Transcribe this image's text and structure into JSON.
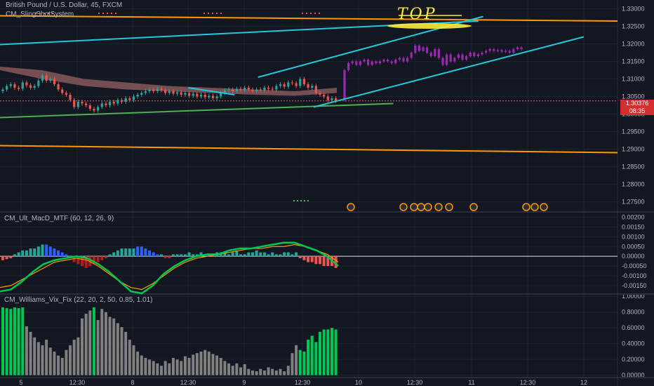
{
  "header": {
    "symbol_line": "British Pound / U.S. Dollar, 45, FXCM",
    "indicator": "CM_SlingShotSystem"
  },
  "annotation": {
    "text": "TOP",
    "color": "#ffeb3b"
  },
  "last_price": {
    "value": "1.30376",
    "countdown": "08:35",
    "color": "#d32f2f"
  },
  "colors": {
    "background": "#131722",
    "grid": "#1e222d",
    "up": "#26a69a",
    "down": "#ef5350",
    "projection": "#9c27b0",
    "ema_band": "#8d5c5c",
    "cyan": "#26c6da",
    "orange": "#ff9800",
    "green_line": "#4caf50",
    "macd_fast": "#00c853",
    "macd_signal": "#ff9800",
    "vix_green": "#00c853",
    "vix_gray": "#808080"
  },
  "chart_data": [
    {
      "type": "candlestick",
      "title": "British Pound / U.S. Dollar, 45, FXCM",
      "x_ticks": [
        "5",
        "12:30",
        "8",
        "12:30",
        "9",
        "12:30",
        "10",
        "12:30",
        "11",
        "12:30",
        "12"
      ],
      "y_ticks": [
        "1.33000",
        "1.32500",
        "1.32000",
        "1.31500",
        "1.31000",
        "1.30500",
        "1.30000",
        "1.29500",
        "1.29000",
        "1.28500",
        "1.28000",
        "1.27500"
      ],
      "ylim": [
        1.2725,
        1.3325
      ],
      "close": [
        1.307,
        1.308,
        1.3085,
        1.3075,
        1.3072,
        1.309,
        1.3082,
        1.3075,
        1.308,
        1.3095,
        1.311,
        1.3095,
        1.31,
        1.3085,
        1.307,
        1.306,
        1.3055,
        1.304,
        1.302,
        1.3035,
        1.303,
        1.3025,
        1.3015,
        1.301,
        1.302,
        1.303,
        1.3025,
        1.3035,
        1.303,
        1.304,
        1.3035,
        1.3045,
        1.304,
        1.305,
        1.3055,
        1.306,
        1.3065,
        1.307,
        1.3065,
        1.3072,
        1.3068,
        1.306,
        1.3065,
        1.3058,
        1.3062,
        1.3055,
        1.306,
        1.3052,
        1.3058,
        1.305,
        1.3055,
        1.3048,
        1.3052,
        1.3045,
        1.305,
        1.306,
        1.3068,
        1.307,
        1.3065,
        1.3072,
        1.3068,
        1.3075,
        1.307,
        1.3065,
        1.307,
        1.3068,
        1.3075,
        1.3072,
        1.307,
        1.308,
        1.3085,
        1.3078,
        1.309,
        1.3088,
        1.308,
        1.31,
        1.3085,
        1.3075,
        1.308,
        1.306,
        1.3055,
        1.305,
        1.304,
        1.3045,
        1.3038
      ],
      "projection_close": [
        1.3125,
        1.3145,
        1.315,
        1.314,
        1.315,
        1.3155,
        1.314,
        1.315,
        1.3145,
        1.315,
        1.3155,
        1.315,
        1.3145,
        1.3155,
        1.316,
        1.315,
        1.316,
        1.3175,
        1.3195,
        1.318,
        1.319,
        1.3175,
        1.3165,
        1.3185,
        1.316,
        1.314,
        1.317,
        1.315,
        1.316,
        1.317,
        1.3155,
        1.3165,
        1.3175,
        1.3165,
        1.317,
        1.3175,
        1.318,
        1.3185,
        1.318,
        1.3182,
        1.3178,
        1.318,
        1.3175,
        1.3185,
        1.319,
        1.3185
      ],
      "ema_band": [
        [
          1.3135,
          1.3125
        ],
        [
          1.3125,
          1.31
        ],
        [
          1.31,
          1.308
        ],
        [
          1.309,
          1.307
        ],
        [
          1.308,
          1.3065
        ],
        [
          1.3075,
          1.306
        ],
        [
          1.307,
          1.3055
        ],
        [
          1.3065,
          1.3052
        ],
        [
          1.3075,
          1.306
        ]
      ],
      "lines": [
        {
          "color": "cyan",
          "from": [
            "start",
            1.3198
          ],
          "to": [
            "11 01:30",
            1.3265
          ]
        },
        {
          "color": "orange",
          "from": [
            "start",
            1.328
          ],
          "to": [
            "end",
            1.3265
          ]
        },
        {
          "color": "orange",
          "from": [
            "start",
            1.291
          ],
          "to": [
            "end",
            1.289
          ]
        },
        {
          "color": "green_line",
          "from": [
            "start",
            1.299
          ],
          "to": [
            "10 07:30",
            1.303
          ]
        },
        {
          "color": "cyan",
          "from": [
            "9 03:00",
            1.3105
          ],
          "to": [
            "11 02:30",
            1.3278
          ]
        },
        {
          "color": "cyan",
          "from": [
            "9 15:00",
            1.302
          ],
          "to": [
            "12 00:00",
            1.322
          ]
        },
        {
          "color": "cyan",
          "from": [
            "8 12:00",
            1.3075
          ],
          "to": [
            "8 22:00",
            1.3055
          ]
        }
      ]
    },
    {
      "type": "macd",
      "title": "CM_Ult_MacD_MTF (60, 12, 26, 9)",
      "y_ticks": [
        "0.00200",
        "0.00150",
        "0.00100",
        "0.00050",
        "0.00000",
        "-0.00050",
        "-0.00100",
        "-0.00150"
      ],
      "ylim": [
        -0.0019,
        0.0022
      ],
      "histogram": [
        -0.0002,
        -0.00015,
        -0.0001,
        0.0001,
        0.0002,
        0.0003,
        0.0003,
        0.0004,
        0.0004,
        0.0005,
        0.0006,
        0.0006,
        0.0005,
        0.0004,
        0.0003,
        0.0002,
        0.0001,
        -0.0001,
        -0.0003,
        -0.0004,
        -0.0005,
        -0.0006,
        -0.0005,
        -0.0004,
        -0.0003,
        -0.0002,
        -0.0001,
        0.0001,
        0.0002,
        0.0003,
        0.0004,
        0.0004,
        0.0004,
        0.0004,
        0.0005,
        0.0005,
        0.0004,
        0.0003,
        0.0002,
        0.0001,
        0.0001,
        -0.0001,
        -0.0001,
        0.0001,
        0.0001,
        0.0001,
        0.0001,
        0.0002,
        0.0001,
        0.0001,
        0.0002,
        0.0001,
        0.0001,
        0.0001,
        0.0002,
        0.0002,
        0.0002,
        0.0001,
        0.0002,
        0.0003,
        0.0001,
        0.0001,
        0.0002,
        0.0002,
        0.0003,
        0.0002,
        0.0002,
        0.0001,
        0.0002,
        0.0001,
        0.0001,
        0.0002,
        0.0002,
        0.0001,
        0.0002,
        -0.0001,
        -0.0002,
        -0.0003,
        -0.0003,
        -0.0004,
        -0.0004,
        -0.0005,
        -0.0005,
        -0.0005,
        -0.0006
      ],
      "macd_line": [
        -0.0018,
        -0.0017,
        -0.0013,
        -0.0008,
        -0.0004,
        -0.0002,
        -0.0001,
        0.0,
        -0.0001,
        -0.0004,
        -0.0008,
        -0.0013,
        -0.0018,
        -0.0019,
        -0.0015,
        -0.0009,
        -0.0005,
        -0.0002,
        0.0,
        0.0001,
        0.0001,
        0.0003,
        0.0004,
        0.0004,
        0.0005,
        0.0006,
        0.0007,
        0.0007,
        0.0005,
        0.0003,
        0.0,
        -0.0005
      ],
      "signal_line": [
        -0.0016,
        -0.0015,
        -0.0012,
        -0.0009,
        -0.0006,
        -0.0003,
        -0.0002,
        -0.0001,
        -0.0002,
        -0.0005,
        -0.0009,
        -0.0013,
        -0.0016,
        -0.0017,
        -0.0014,
        -0.001,
        -0.0006,
        -0.0003,
        -0.0001,
        0.0,
        0.0001,
        0.0002,
        0.0003,
        0.0004,
        0.0004,
        0.0005,
        0.0005,
        0.0006,
        0.0005,
        0.0003,
        0.0001,
        -0.0003
      ]
    },
    {
      "type": "bar",
      "title": "CM_Williams_Vix_Fix (22, 20, 2, 50, 0.85, 1.01)",
      "y_ticks": [
        "1.00000",
        "0.80000",
        "0.60000",
        "0.40000",
        "0.20000",
        "0.00000"
      ],
      "ylim": [
        -0.03,
        1.02
      ],
      "values": [
        0.86,
        0.85,
        0.84,
        0.86,
        0.85,
        0.86,
        0.62,
        0.55,
        0.48,
        0.42,
        0.38,
        0.45,
        0.35,
        0.3,
        0.25,
        0.22,
        0.32,
        0.38,
        0.45,
        0.48,
        0.72,
        0.78,
        0.82,
        0.86,
        0.7,
        0.84,
        0.8,
        0.74,
        0.72,
        0.66,
        0.61,
        0.55,
        0.45,
        0.38,
        0.3,
        0.25,
        0.22,
        0.2,
        0.18,
        0.15,
        0.12,
        0.18,
        0.15,
        0.22,
        0.2,
        0.18,
        0.24,
        0.22,
        0.26,
        0.28,
        0.3,
        0.32,
        0.3,
        0.27,
        0.25,
        0.22,
        0.18,
        0.15,
        0.12,
        0.15,
        0.1,
        0.14,
        0.08,
        0.06,
        0.05,
        0.08,
        0.06,
        0.1,
        0.08,
        0.06,
        0.08,
        0.05,
        0.12,
        0.28,
        0.38,
        0.32,
        0.3,
        0.45,
        0.5,
        0.42,
        0.55,
        0.58,
        0.58,
        0.6,
        0.58
      ],
      "green_bars": [
        0,
        1,
        2,
        3,
        4,
        5,
        23,
        75,
        76,
        77,
        78,
        79,
        80,
        81,
        82,
        83,
        84
      ]
    }
  ]
}
